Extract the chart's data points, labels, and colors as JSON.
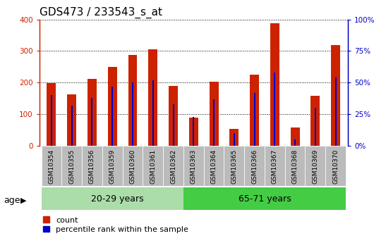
{
  "title": "GDS473 / 233543_s_at",
  "categories": [
    "GSM10354",
    "GSM10355",
    "GSM10356",
    "GSM10359",
    "GSM10360",
    "GSM10361",
    "GSM10362",
    "GSM10363",
    "GSM10364",
    "GSM10365",
    "GSM10366",
    "GSM10367",
    "GSM10368",
    "GSM10369",
    "GSM10370"
  ],
  "count_values": [
    198,
    163,
    212,
    250,
    288,
    305,
    190,
    90,
    204,
    53,
    226,
    388,
    58,
    158,
    318
  ],
  "percentile_values": [
    40,
    32,
    38,
    47,
    50,
    52,
    33,
    23,
    37,
    10,
    42,
    58,
    5,
    30,
    54
  ],
  "group1_label": "20-29 years",
  "group2_label": "65-71 years",
  "group1_count": 7,
  "group2_count": 8,
  "count_color": "#cc2200",
  "percentile_color": "#0000cc",
  "bar_bg_color": "#bbbbbb",
  "group1_bg": "#aaddaa",
  "group2_bg": "#44cc44",
  "ylim_left": [
    0,
    400
  ],
  "ylim_right": [
    0,
    100
  ],
  "yticks_left": [
    0,
    100,
    200,
    300,
    400
  ],
  "ytick_labels_left": [
    "0",
    "100",
    "200",
    "300",
    "400"
  ],
  "yticks_right": [
    0,
    25,
    50,
    75,
    100
  ],
  "ytick_labels_right": [
    "0%",
    "25%",
    "50%",
    "75%",
    "100%"
  ],
  "legend_count": "count",
  "legend_percentile": "percentile rank within the sample",
  "age_label": "age",
  "title_fontsize": 11,
  "tick_fontsize": 7.5,
  "label_fontsize": 9,
  "bar_width": 0.45,
  "perc_bar_width": 0.07
}
